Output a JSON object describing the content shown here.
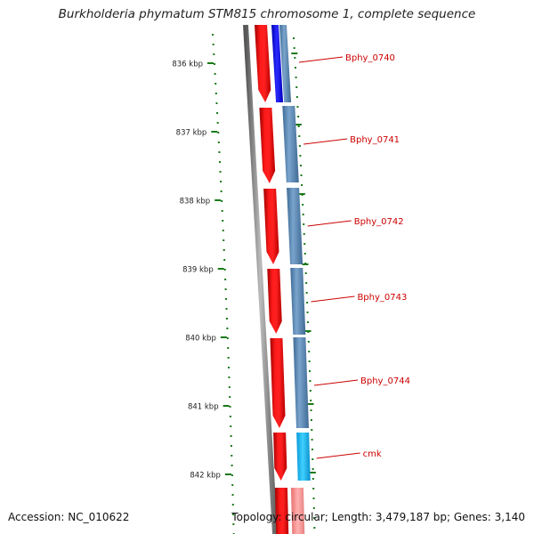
{
  "title": "Burkholderia phymatum STM815 chromosome 1, complete sequence",
  "accession": "Accession: NC_010622",
  "summary": "Topology: circular; Length: 3,479,187 bp; Genes: 3,140",
  "colors": {
    "backbone": "#777777",
    "forward_cds": "#e00000",
    "reverse_cds": "#4f7fae",
    "highlight_blue": "#1010e0",
    "highlight_cyan": "#10b8f0",
    "label": "#cc0000",
    "gc_dots": "#1a7a1a"
  },
  "scale": {
    "unit": "kbp",
    "ticks": [
      {
        "kbp": 836,
        "label": "836 kbp"
      },
      {
        "kbp": 837,
        "label": "837 kbp"
      },
      {
        "kbp": 838,
        "label": "838 kbp"
      },
      {
        "kbp": 839,
        "label": "839 kbp"
      },
      {
        "kbp": 840,
        "label": "840 kbp"
      },
      {
        "kbp": 841,
        "label": "841 kbp"
      },
      {
        "kbp": 842,
        "label": "842 kbp"
      }
    ]
  },
  "genes": [
    {
      "label": "Bphy_0740",
      "strand": "reverse",
      "color": "highlight_blue"
    },
    {
      "label": "Bphy_0741",
      "strand": "reverse",
      "color": "reverse_cds"
    },
    {
      "label": "Bphy_0742",
      "strand": "reverse",
      "color": "reverse_cds"
    },
    {
      "label": "Bphy_0743",
      "strand": "reverse",
      "color": "reverse_cds"
    },
    {
      "label": "Bphy_0744",
      "strand": "reverse",
      "color": "reverse_cds"
    },
    {
      "label": "cmk",
      "strand": "reverse",
      "color": "highlight_cyan"
    }
  ]
}
